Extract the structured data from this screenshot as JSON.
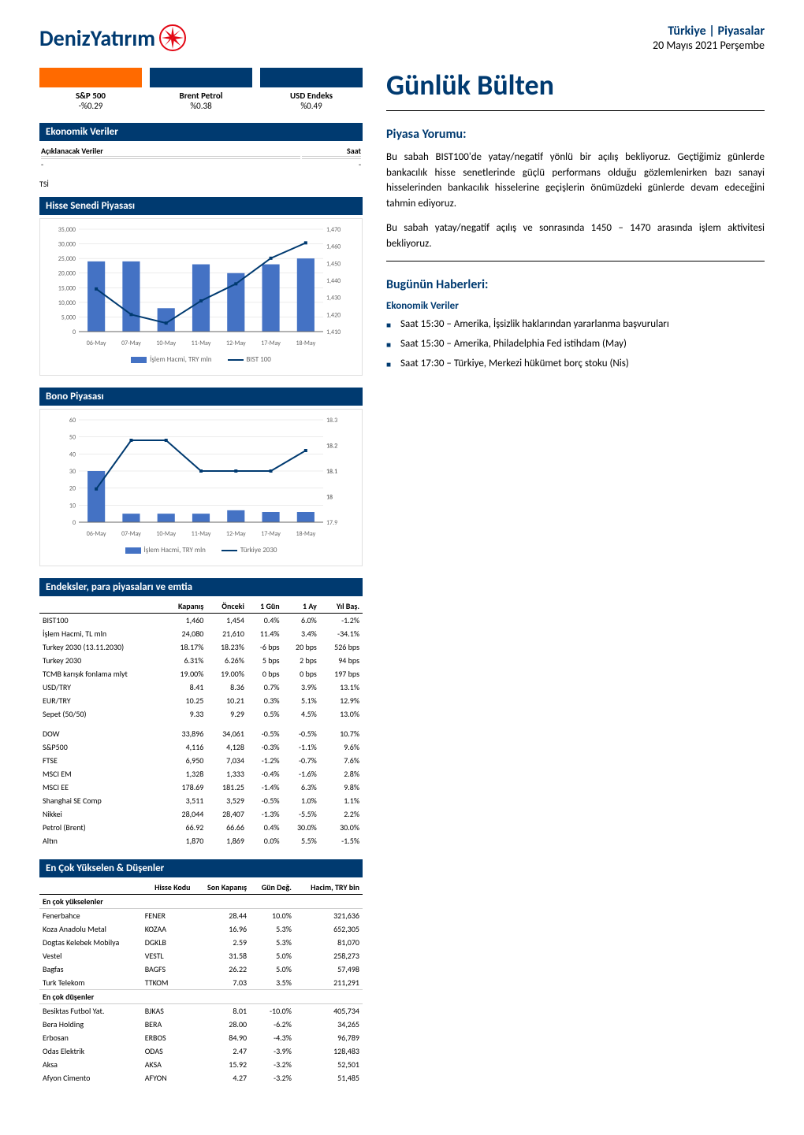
{
  "header": {
    "logo_brand": "Deniz",
    "logo_sub": "Yatırım",
    "category": "Türkiye | Piyasalar",
    "date": "20 Mayıs 2021 Perşembe"
  },
  "indicators": [
    {
      "name": "S&P 500",
      "value": "-%0.29",
      "color": "#ff6a00"
    },
    {
      "name": "Brent Petrol",
      "value": "%0.38",
      "color": "#003a70"
    },
    {
      "name": "USD Endeks",
      "value": "%0.49",
      "color": "#003a70"
    }
  ],
  "econ": {
    "title": "Ekonomik Veriler",
    "col1": "Açıklanacak Veriler",
    "col2": "Saat",
    "row_left": "-",
    "row_right": "-",
    "note": "TSİ"
  },
  "stock_chart": {
    "title": "Hisse Senedi Piyasası",
    "x_labels": [
      "06-May",
      "07-May",
      "10-May",
      "11-May",
      "12-May",
      "17-May",
      "18-May"
    ],
    "left_axis_ticks": [
      0,
      5000,
      10000,
      15000,
      20000,
      25000,
      30000,
      35000
    ],
    "right_axis_ticks": [
      1410,
      1420,
      1430,
      1440,
      1450,
      1460,
      1470
    ],
    "volume_values": [
      24000,
      24000,
      8000,
      23000,
      20000,
      23000,
      25000
    ],
    "line_values": [
      1435,
      1420,
      1415,
      1428,
      1438,
      1453,
      1462
    ],
    "bar_color": "#4472c4",
    "line_color": "#003a70",
    "grid_color": "#d9d9d9",
    "legend_bar": "İşlem Hacmi, TRY mln",
    "legend_line": "BIST 100"
  },
  "bond_chart": {
    "title": "Bono Piyasası",
    "x_labels": [
      "06-May",
      "07-May",
      "10-May",
      "11-May",
      "12-May",
      "17-May",
      "18-May"
    ],
    "left_axis_ticks": [
      0.0,
      10.0,
      20.0,
      30.0,
      40.0,
      50.0,
      60.0
    ],
    "right_axis_ticks": [
      17.9,
      18.0,
      18.0,
      18.1,
      18.1,
      18.2,
      18.2,
      18.3
    ],
    "volume_values": [
      30,
      5,
      5,
      5,
      7,
      6,
      6
    ],
    "line_values": [
      18.03,
      18.22,
      18.22,
      18.1,
      18.1,
      18.1,
      18.18
    ],
    "bar_color": "#4472c4",
    "line_color": "#003a70",
    "grid_color": "#d9d9d9",
    "legend_bar": "İşlem Hacmi, TRY mln",
    "legend_line": "Türkiye 2030"
  },
  "index_table": {
    "title": "Endeksler, para piyasaları ve emtia",
    "columns": [
      "",
      "Kapanış",
      "Önceki",
      "1 Gün",
      "1 Ay",
      "Yıl Baş."
    ],
    "block1": [
      [
        "BIST100",
        "1,460",
        "1,454",
        "0.4%",
        "6.0%",
        "-1.2%"
      ],
      [
        "İşlem Hacmi, TL mln",
        "24,080",
        "21,610",
        "11.4%",
        "3.4%",
        "-34.1%"
      ],
      [
        "Turkey 2030 (13.11.2030)",
        "18.17%",
        "18.23%",
        "-6 bps",
        "20 bps",
        "526 bps"
      ],
      [
        "Turkey 2030",
        "6.31%",
        "6.26%",
        "5 bps",
        "2 bps",
        "94 bps"
      ],
      [
        "TCMB karışık fonlama mlyt",
        "19.00%",
        "19.00%",
        "0 bps",
        "0 bps",
        "197 bps"
      ],
      [
        "USD/TRY",
        "8.41",
        "8.36",
        "0.7%",
        "3.9%",
        "13.1%"
      ],
      [
        "EUR/TRY",
        "10.25",
        "10.21",
        "0.3%",
        "5.1%",
        "12.9%"
      ],
      [
        "Sepet (50/50)",
        "9.33",
        "9.29",
        "0.5%",
        "4.5%",
        "13.0%"
      ]
    ],
    "block2": [
      [
        "DOW",
        "33,896",
        "34,061",
        "-0.5%",
        "-0.5%",
        "10.7%"
      ],
      [
        "S&P500",
        "4,116",
        "4,128",
        "-0.3%",
        "-1.1%",
        "9.6%"
      ],
      [
        "FTSE",
        "6,950",
        "7,034",
        "-1.2%",
        "-0.7%",
        "7.6%"
      ],
      [
        "MSCI EM",
        "1,328",
        "1,333",
        "-0.4%",
        "-1.6%",
        "2.8%"
      ],
      [
        "MSCI EE",
        "178.69",
        "181.25",
        "-1.4%",
        "6.3%",
        "9.8%"
      ],
      [
        "Shanghai SE Comp",
        "3,511",
        "3,529",
        "-0.5%",
        "1.0%",
        "1.1%"
      ],
      [
        "Nikkei",
        "28,044",
        "28,407",
        "-1.3%",
        "-5.5%",
        "2.2%"
      ],
      [
        "Petrol (Brent)",
        "66.92",
        "66.66",
        "0.4%",
        "30.0%",
        "30.0%"
      ],
      [
        "Altın",
        "1,870",
        "1,869",
        "0.0%",
        "5.5%",
        "-1.5%"
      ]
    ]
  },
  "movers": {
    "title": "En Çok Yükselen & Düşenler",
    "columns": [
      "",
      "Hisse Kodu",
      "Son Kapanış",
      "Gün Değ.",
      "Hacim, TRY bin"
    ],
    "gainers_label": "En çok yükselenler",
    "losers_label": "En çok düşenler",
    "gainers": [
      [
        "Fenerbahce",
        "FENER",
        "28.44",
        "10.0%",
        "321,636"
      ],
      [
        "Koza Anadolu Metal",
        "KOZAA",
        "16.96",
        "5.3%",
        "652,305"
      ],
      [
        "Dogtas Kelebek Mobilya",
        "DGKLB",
        "2.59",
        "5.3%",
        "81,070"
      ],
      [
        "Vestel",
        "VESTL",
        "31.58",
        "5.0%",
        "258,273"
      ],
      [
        "Bagfas",
        "BAGFS",
        "26.22",
        "5.0%",
        "57,498"
      ],
      [
        "Turk Telekom",
        "TTKOM",
        "7.03",
        "3.5%",
        "211,291"
      ]
    ],
    "losers": [
      [
        "Besiktas Futbol Yat.",
        "BJKAS",
        "8.01",
        "-10.0%",
        "405,734"
      ],
      [
        "Bera Holding",
        "BERA",
        "28.00",
        "-6.2%",
        "34,265"
      ],
      [
        "Erbosan",
        "ERBOS",
        "84.90",
        "-4.3%",
        "96,789"
      ],
      [
        "Odas Elektrik",
        "ODAS",
        "2.47",
        "-3.9%",
        "128,483"
      ],
      [
        "Aksa",
        "AKSA",
        "15.92",
        "-3.2%",
        "52,501"
      ],
      [
        "Afyon Cimento",
        "AFYON",
        "4.27",
        "-3.2%",
        "51,485"
      ]
    ]
  },
  "bulletin": {
    "title": "Günlük Bülten",
    "commentary_title": "Piyasa Yorumu:",
    "commentary_p1": "Bu sabah BIST100'de yatay/negatif yönlü bir açılış bekliyoruz. Geçtiğimiz günlerde bankacılık hisse senetlerinde güçlü performans olduğu gözlemlenirken bazı sanayi hisselerinden bankacılık hisselerine geçişlerin önümüzdeki günlerde devam edeceğini tahmin ediyoruz.",
    "commentary_p2": "Bu sabah yatay/negatif açılış ve sonrasında 1450 – 1470 arasında işlem aktivitesi bekliyoruz.",
    "news_title": "Bugünün Haberleri:",
    "news_sub": "Ekonomik Veriler",
    "bullets": [
      "Saat 15:30 – Amerika, İşsizlik haklarından yararlanma başvuruları",
      "Saat 15:30 – Amerika, Philadelphia Fed istihdam (May)",
      "Saat 17:30 – Türkiye, Merkezi hükümet borç stoku (Nis)"
    ]
  }
}
